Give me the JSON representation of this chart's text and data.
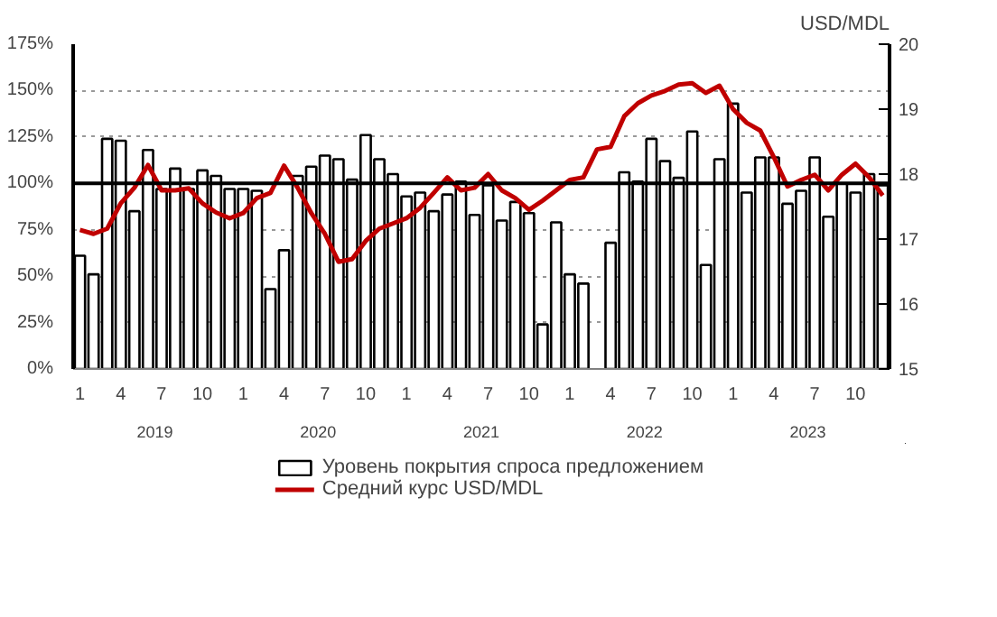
{
  "chart_data": {
    "type": "bar",
    "y2label": "USD/MDL",
    "x": [
      "2019-01",
      "2019-02",
      "2019-03",
      "2019-04",
      "2019-05",
      "2019-06",
      "2019-07",
      "2019-08",
      "2019-09",
      "2019-10",
      "2019-11",
      "2019-12",
      "2020-01",
      "2020-02",
      "2020-03",
      "2020-04",
      "2020-05",
      "2020-06",
      "2020-07",
      "2020-08",
      "2020-09",
      "2020-10",
      "2020-11",
      "2020-12",
      "2021-01",
      "2021-02",
      "2021-03",
      "2021-04",
      "2021-05",
      "2021-06",
      "2021-07",
      "2021-08",
      "2021-09",
      "2021-10",
      "2021-11",
      "2021-12",
      "2022-01",
      "2022-02",
      "2022-03",
      "2022-04",
      "2022-05",
      "2022-06",
      "2022-07",
      "2022-08",
      "2022-09",
      "2022-10",
      "2022-11",
      "2022-12",
      "2023-01",
      "2023-02",
      "2023-03",
      "2023-04",
      "2023-05",
      "2023-06",
      "2023-07",
      "2023-08",
      "2023-09",
      "2023-10",
      "2023-11",
      "2023-12"
    ],
    "series": [
      {
        "name": "Уровень покрытия спроса предложением",
        "color": "#ffffff",
        "values": [
          61,
          51,
          124,
          123,
          85,
          118,
          97,
          108,
          97,
          107,
          104,
          97,
          97,
          96,
          43,
          64,
          104,
          109,
          115,
          113,
          102,
          126,
          113,
          105,
          93,
          95,
          85,
          94,
          101,
          83,
          99,
          80,
          90,
          84,
          24,
          79,
          51,
          46,
          null,
          68,
          106,
          101,
          124,
          112,
          103,
          128,
          56,
          113,
          143,
          95,
          114,
          114,
          89,
          96,
          114,
          82,
          100,
          95,
          105,
          99
        ]
      },
      {
        "name": "Средний курс USD/MDL",
        "type": "line",
        "axis": "y2",
        "color": "#c00000",
        "values": [
          17.14,
          17.08,
          17.16,
          17.55,
          17.79,
          18.14,
          17.75,
          17.75,
          17.78,
          17.55,
          17.41,
          17.32,
          17.4,
          17.63,
          17.71,
          18.13,
          17.79,
          17.4,
          17.08,
          16.65,
          16.69,
          16.97,
          17.16,
          17.24,
          17.32,
          17.48,
          17.71,
          17.95,
          17.75,
          17.79,
          18.0,
          17.75,
          17.63,
          17.45,
          17.59,
          17.75,
          17.91,
          17.95,
          18.38,
          18.42,
          18.89,
          19.09,
          19.21,
          19.28,
          19.38,
          19.4,
          19.25,
          19.36,
          19.0,
          18.79,
          18.67,
          18.26,
          17.81,
          17.91,
          17.99,
          17.75,
          17.99,
          18.16,
          17.95,
          17.67
        ]
      }
    ],
    "ylim": [
      0,
      175
    ],
    "yticks": [
      {
        "value": 0,
        "label": "0%"
      },
      {
        "value": 25,
        "label": "25%"
      },
      {
        "value": 50,
        "label": "50%"
      },
      {
        "value": 75,
        "label": "75%"
      },
      {
        "value": 100,
        "label": "100%"
      },
      {
        "value": 125,
        "label": "125%"
      },
      {
        "value": 150,
        "label": "150%"
      },
      {
        "value": 175,
        "label": "175%"
      }
    ],
    "y2lim": [
      15,
      20
    ],
    "y2ticks": [
      15,
      16,
      17,
      18,
      19,
      20
    ],
    "xticks": [
      {
        "value": "2019-01",
        "label": "1"
      },
      {
        "value": "2019-04",
        "label": "4"
      },
      {
        "value": "2019-07",
        "label": "7"
      },
      {
        "value": "2019-10",
        "label": "10"
      },
      {
        "value": "2020-01",
        "label": "1"
      },
      {
        "value": "2020-04",
        "label": "4"
      },
      {
        "value": "2020-07",
        "label": "7"
      },
      {
        "value": "2020-10",
        "label": "10"
      },
      {
        "value": "2021-01",
        "label": "1"
      },
      {
        "value": "2021-04",
        "label": "4"
      },
      {
        "value": "2021-07",
        "label": "7"
      },
      {
        "value": "2021-10",
        "label": "10"
      },
      {
        "value": "2022-01",
        "label": "1"
      },
      {
        "value": "2022-04",
        "label": "4"
      },
      {
        "value": "2022-07",
        "label": "7"
      },
      {
        "value": "2022-10",
        "label": "10"
      },
      {
        "value": "2023-01",
        "label": "1"
      },
      {
        "value": "2023-04",
        "label": "4"
      },
      {
        "value": "2023-07",
        "label": "7"
      },
      {
        "value": "2023-10",
        "label": "10"
      }
    ],
    "annotations": [
      "2019",
      "2020",
      "2021",
      "2022",
      "2023"
    ],
    "xlim": [
      "2018-12-16",
      "2023-12-16"
    ],
    "ref_lines": [
      {
        "axis": "y",
        "value": 100,
        "color": "#000000",
        "line_style": "solid"
      }
    ],
    "grid": "y",
    "legend": "bottom",
    "line_style": "solid"
  }
}
